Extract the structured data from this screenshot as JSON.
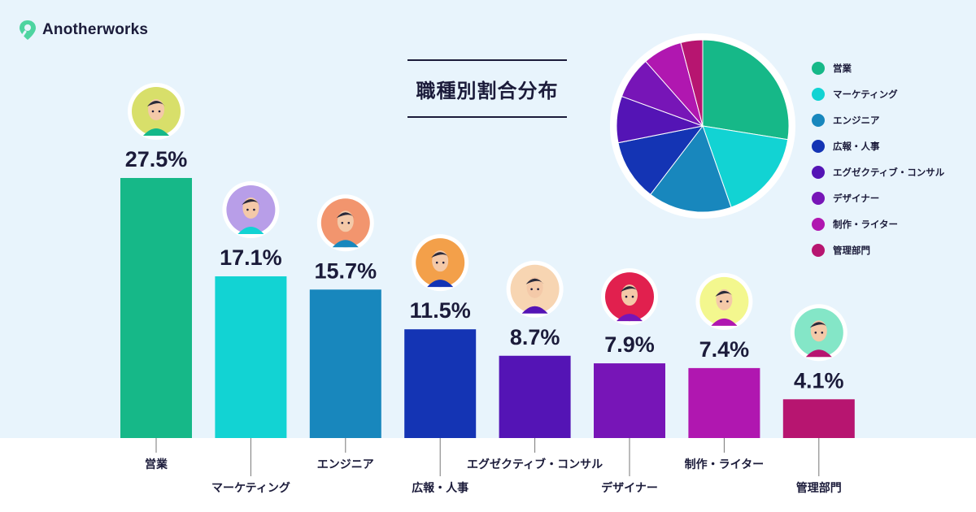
{
  "brand": {
    "name": "Anotherworks",
    "color": "#4dd4a0"
  },
  "title": "職種別割合分布",
  "chart_data": [
    {
      "type": "bar",
      "title": "職種別割合分布",
      "categories": [
        "営業",
        "マーケティング",
        "エンジニア",
        "広報・人事",
        "エグゼクティブ・コンサル",
        "デザイナー",
        "制作・ライター",
        "管理部門"
      ],
      "series": [
        {
          "values": [
            27.5,
            17.1,
            15.7,
            11.5,
            8.7,
            7.9,
            7.4,
            4.1
          ],
          "labels": [
            "27.5%",
            "17.1%",
            "15.7%",
            "11.5%",
            "8.7%",
            "7.9%",
            "7.4%",
            "4.1%"
          ],
          "colors": [
            "#16b888",
            "#12d3d3",
            "#1887bd",
            "#1434b4",
            "#5414b5",
            "#7715b7",
            "#b017b0",
            "#b71570"
          ]
        }
      ],
      "avatar_colors": [
        "#d8df6a",
        "#b89ee8",
        "#f2956e",
        "#f3a04a",
        "#f7d5b2",
        "#e1204e",
        "#f3f78e",
        "#84e6c7"
      ],
      "ylim": [
        0,
        27.5
      ],
      "xlabel": "",
      "ylabel": "",
      "grid": false
    },
    {
      "type": "pie",
      "categories": [
        "営業",
        "マーケティング",
        "エンジニア",
        "広報・人事",
        "エグゼクティブ・コンサル",
        "デザイナー",
        "制作・ライター",
        "管理部門"
      ],
      "values": [
        27.5,
        17.1,
        15.7,
        11.5,
        8.7,
        7.9,
        7.4,
        4.1
      ],
      "colors": [
        "#16b888",
        "#12d3d3",
        "#1887bd",
        "#1434b4",
        "#5414b5",
        "#7715b7",
        "#b017b0",
        "#b71570"
      ],
      "legend_position": "right"
    }
  ]
}
